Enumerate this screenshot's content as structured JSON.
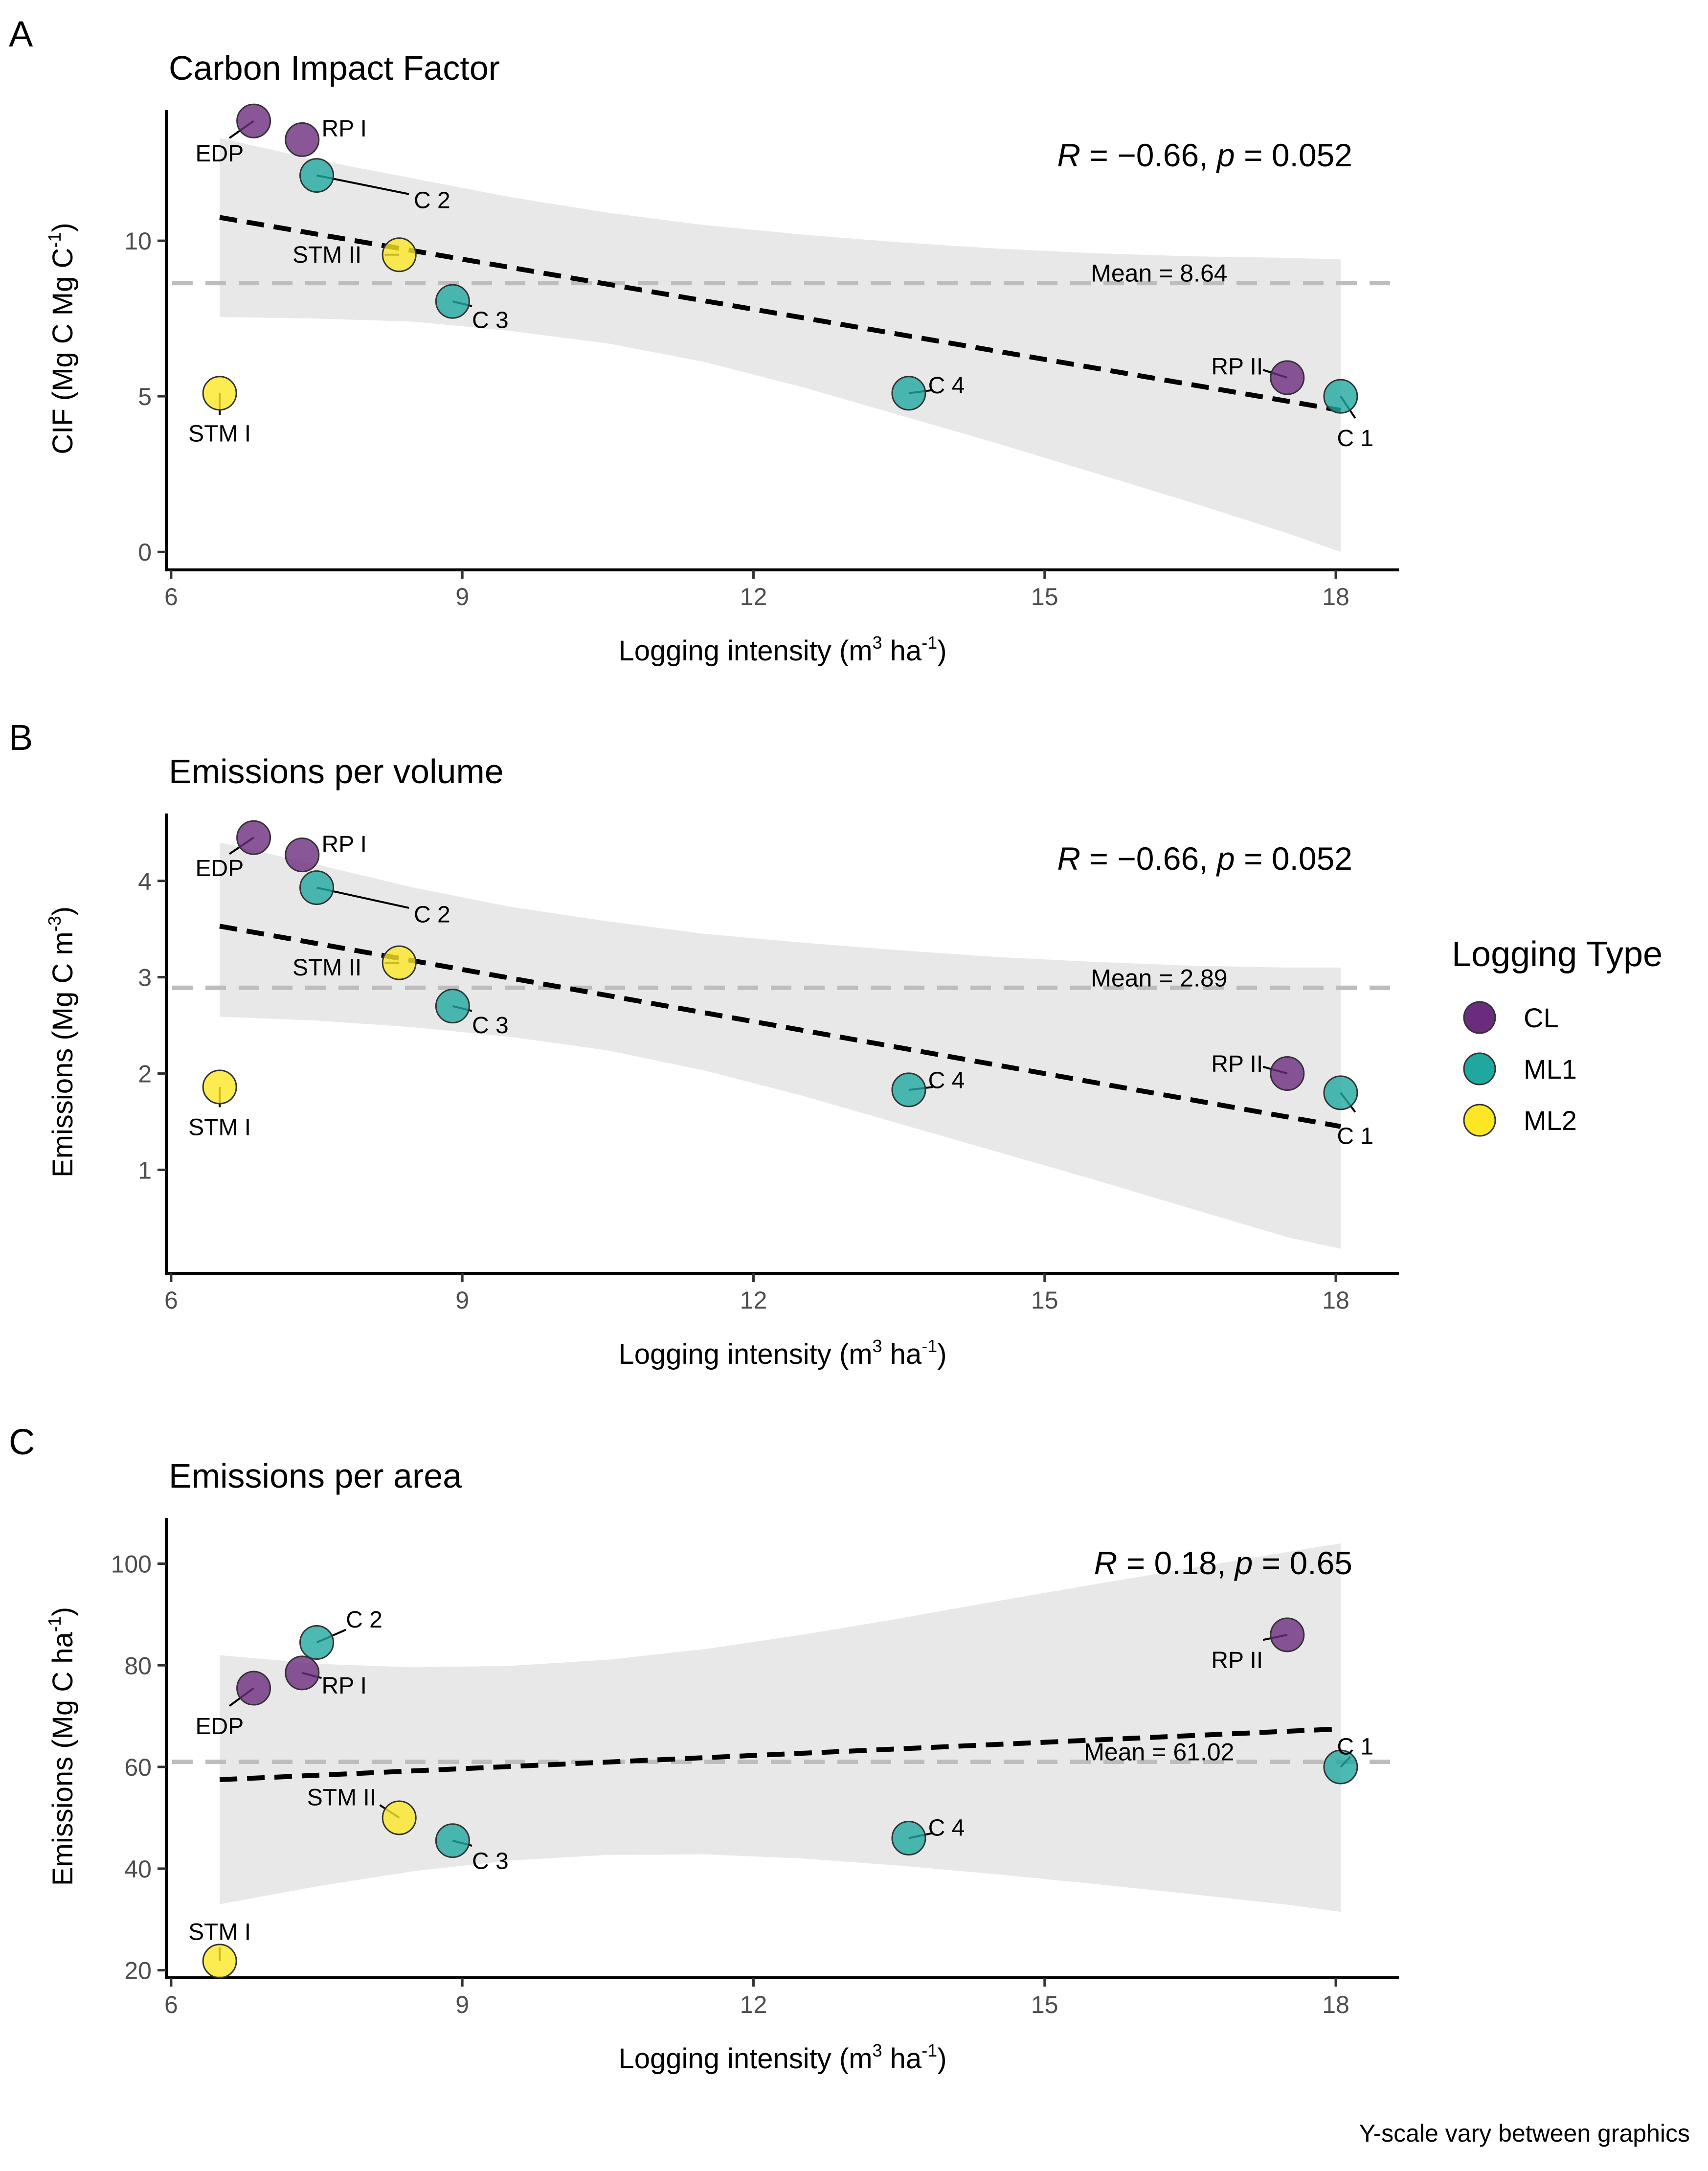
{
  "figure": {
    "footnote": "Y-scale vary between graphics",
    "legend": {
      "title": "Logging Type",
      "items": [
        {
          "key": "CL",
          "label": "CL",
          "color": "#6b2c7d"
        },
        {
          "key": "ML1",
          "label": "ML1",
          "color": "#1fa8a0"
        },
        {
          "key": "ML2",
          "label": "ML2",
          "color": "#fde725"
        }
      ]
    },
    "colors": {
      "ribbon": "#e8e8e8",
      "mean_line": "#bdbdbd",
      "trend_line": "#000000"
    }
  },
  "chart_data": [
    {
      "type": "scatter",
      "letter": "A",
      "title": "Carbon Impact Factor",
      "xlabel": "Logging intensity (m",
      "xlabel_sup1": "3",
      "xlabel_mid": " ha",
      "xlabel_sup2": "-1",
      "xlabel_end": ")",
      "ylabel": "CIF (Mg C Mg C",
      "ylabel_sup": "-1",
      "ylabel_end": ")",
      "xlim": [
        5.95,
        18.65
      ],
      "ylim": [
        -0.5,
        14.2
      ],
      "xticks": [
        6,
        9,
        12,
        15,
        18
      ],
      "yticks": [
        0,
        5,
        10
      ],
      "stat_r_label": "R",
      "stat_r_value": " = −0.66, ",
      "stat_p_label": "p",
      "stat_p_value": " = 0.052",
      "mean_value": 8.64,
      "mean_label": "Mean = 8.64",
      "trend": {
        "x": [
          6.5,
          18.05
        ],
        "y": [
          10.75,
          4.55
        ]
      },
      "ribbon": {
        "x": [
          6.5,
          7.5,
          8.5,
          9.5,
          10.5,
          11.5,
          12.5,
          13.5,
          14.5,
          15.5,
          16.5,
          17.5,
          18.05
        ],
        "upper": [
          13.3,
          12.6,
          12.0,
          11.4,
          10.9,
          10.5,
          10.2,
          9.95,
          9.75,
          9.6,
          9.5,
          9.45,
          9.4
        ],
        "lower": [
          7.55,
          7.5,
          7.4,
          7.1,
          6.7,
          6.1,
          5.3,
          4.4,
          3.5,
          2.55,
          1.6,
          0.6,
          0.0
        ]
      },
      "points": [
        {
          "label": "EDP",
          "x": 6.85,
          "y": 13.85,
          "type": "CL",
          "lx": 6.25,
          "ly": 12.8,
          "anchor": "start",
          "lineTo": [
            6.6,
            13.3
          ]
        },
        {
          "label": "RP I",
          "x": 7.35,
          "y": 13.25,
          "type": "CL",
          "lx": 7.55,
          "ly": 13.6,
          "anchor": "start",
          "lineTo": null
        },
        {
          "label": "C 2",
          "x": 7.5,
          "y": 12.1,
          "type": "ML1",
          "lx": 8.5,
          "ly": 11.3,
          "anchor": "start",
          "lineTo": [
            8.45,
            11.5
          ]
        },
        {
          "label": "STM II",
          "x": 8.35,
          "y": 9.55,
          "type": "ML2",
          "lx": 7.25,
          "ly": 9.55,
          "anchor": "start",
          "lineTo": [
            8.2,
            9.55
          ]
        },
        {
          "label": "C 3",
          "x": 8.9,
          "y": 8.05,
          "type": "ML1",
          "lx": 9.1,
          "ly": 7.45,
          "anchor": "start",
          "lineTo": [
            9.1,
            7.9
          ]
        },
        {
          "label": "STM I",
          "x": 6.5,
          "y": 5.1,
          "type": "ML2",
          "lx": 6.5,
          "ly": 3.8,
          "anchor": "middle",
          "lineTo": [
            6.5,
            4.4
          ]
        },
        {
          "label": "C 4",
          "x": 13.6,
          "y": 5.1,
          "type": "ML1",
          "lx": 13.8,
          "ly": 5.35,
          "anchor": "start",
          "lineTo": [
            13.85,
            5.2
          ]
        },
        {
          "label": "RP II",
          "x": 17.5,
          "y": 5.6,
          "type": "CL",
          "lx": 17.25,
          "ly": 5.95,
          "anchor": "end",
          "lineTo": [
            17.25,
            5.85
          ]
        },
        {
          "label": "C 1",
          "x": 18.05,
          "y": 5.0,
          "type": "ML1",
          "lx": 18.2,
          "ly": 3.65,
          "anchor": "middle",
          "lineTo": [
            18.2,
            4.3
          ]
        }
      ]
    },
    {
      "type": "scatter",
      "letter": "B",
      "title": "Emissions per volume",
      "xlabel": "Logging intensity (m",
      "xlabel_sup1": "3",
      "xlabel_mid": " ha",
      "xlabel_sup2": "-1",
      "xlabel_end": ")",
      "ylabel": "Emissions (Mg C m",
      "ylabel_sup": "-3",
      "ylabel_end": ")",
      "xlim": [
        5.95,
        18.65
      ],
      "ylim": [
        -0.05,
        4.7
      ],
      "xticks": [
        6,
        9,
        12,
        15,
        18
      ],
      "yticks": [
        1,
        2,
        3,
        4
      ],
      "stat_r_label": "R",
      "stat_r_value": " = −0.66, ",
      "stat_p_label": "p",
      "stat_p_value": " = 0.052",
      "mean_value": 2.89,
      "mean_label": "Mean = 2.89",
      "trend": {
        "x": [
          6.5,
          18.05
        ],
        "y": [
          3.53,
          1.45
        ]
      },
      "ribbon": {
        "x": [
          6.5,
          7.5,
          8.5,
          9.5,
          10.5,
          11.5,
          12.5,
          13.5,
          14.5,
          15.5,
          16.5,
          17.5,
          18.05
        ],
        "upper": [
          4.4,
          4.17,
          3.93,
          3.73,
          3.58,
          3.45,
          3.36,
          3.28,
          3.21,
          3.16,
          3.12,
          3.1,
          3.1
        ],
        "lower": [
          2.59,
          2.55,
          2.48,
          2.38,
          2.24,
          2.03,
          1.77,
          1.48,
          1.19,
          0.9,
          0.6,
          0.3,
          0.18
        ]
      },
      "points": [
        {
          "label": "EDP",
          "x": 6.85,
          "y": 4.45,
          "type": "CL",
          "lx": 6.25,
          "ly": 4.13,
          "anchor": "start",
          "lineTo": [
            6.6,
            4.28
          ]
        },
        {
          "label": "RP I",
          "x": 7.35,
          "y": 4.27,
          "type": "CL",
          "lx": 7.55,
          "ly": 4.38,
          "anchor": "start",
          "lineTo": null
        },
        {
          "label": "C 2",
          "x": 7.5,
          "y": 3.93,
          "type": "ML1",
          "lx": 8.5,
          "ly": 3.65,
          "anchor": "start",
          "lineTo": [
            8.45,
            3.72
          ]
        },
        {
          "label": "STM II",
          "x": 8.35,
          "y": 3.15,
          "type": "ML2",
          "lx": 7.25,
          "ly": 3.1,
          "anchor": "start",
          "lineTo": [
            8.2,
            3.15
          ]
        },
        {
          "label": "C 3",
          "x": 8.9,
          "y": 2.7,
          "type": "ML1",
          "lx": 9.1,
          "ly": 2.5,
          "anchor": "start",
          "lineTo": [
            9.1,
            2.65
          ]
        },
        {
          "label": "STM I",
          "x": 6.5,
          "y": 1.86,
          "type": "ML2",
          "lx": 6.5,
          "ly": 1.44,
          "anchor": "middle",
          "lineTo": [
            6.5,
            1.65
          ]
        },
        {
          "label": "C 4",
          "x": 13.6,
          "y": 1.83,
          "type": "ML1",
          "lx": 13.8,
          "ly": 1.93,
          "anchor": "start",
          "lineTo": [
            13.85,
            1.86
          ]
        },
        {
          "label": "RP II",
          "x": 17.5,
          "y": 2.0,
          "type": "CL",
          "lx": 17.25,
          "ly": 2.1,
          "anchor": "end",
          "lineTo": [
            17.25,
            2.07
          ]
        },
        {
          "label": "C 1",
          "x": 18.05,
          "y": 1.8,
          "type": "ML1",
          "lx": 18.2,
          "ly": 1.35,
          "anchor": "middle",
          "lineTo": [
            18.2,
            1.6
          ]
        }
      ]
    },
    {
      "type": "scatter",
      "letter": "C",
      "title": "Emissions per area",
      "xlabel": "Logging intensity (m",
      "xlabel_sup1": "3",
      "xlabel_mid": " ha",
      "xlabel_sup2": "-1",
      "xlabel_end": ")",
      "ylabel": "Emissions (Mg C ha",
      "ylabel_sup": "-1",
      "ylabel_end": ")",
      "xlim": [
        5.95,
        18.65
      ],
      "ylim": [
        19,
        109
      ],
      "xticks": [
        6,
        9,
        12,
        15,
        18
      ],
      "yticks": [
        20,
        40,
        60,
        80,
        100
      ],
      "stat_r_label": "R",
      "stat_r_value": " = 0.18, ",
      "stat_p_label": "p",
      "stat_p_value": " = 0.65",
      "mean_value": 61.02,
      "mean_label": "Mean = 61.02",
      "trend": {
        "x": [
          6.5,
          18.05
        ],
        "y": [
          57.5,
          67.5
        ]
      },
      "ribbon": {
        "x": [
          6.5,
          7.5,
          8.5,
          9.5,
          10.5,
          11.5,
          12.5,
          13.5,
          14.5,
          15.5,
          16.5,
          17.5,
          18.05
        ],
        "upper": [
          82.0,
          80.3,
          79.6,
          79.9,
          81.1,
          83.2,
          86.0,
          89.2,
          92.6,
          95.9,
          99.1,
          102.3,
          104.0
        ],
        "lower": [
          33.0,
          36.5,
          39.5,
          41.6,
          42.7,
          42.8,
          42.0,
          40.6,
          38.9,
          37.0,
          35.0,
          32.9,
          31.5
        ]
      },
      "points": [
        {
          "label": "EDP",
          "x": 6.85,
          "y": 75.5,
          "type": "CL",
          "lx": 6.25,
          "ly": 68.0,
          "anchor": "start",
          "lineTo": [
            6.6,
            72.0
          ]
        },
        {
          "label": "RP I",
          "x": 7.35,
          "y": 78.5,
          "type": "CL",
          "lx": 7.55,
          "ly": 76.0,
          "anchor": "start",
          "lineTo": [
            7.55,
            77.5
          ]
        },
        {
          "label": "C 2",
          "x": 7.5,
          "y": 84.5,
          "type": "ML1",
          "lx": 7.8,
          "ly": 89.0,
          "anchor": "start",
          "lineTo": [
            7.8,
            87.0
          ]
        },
        {
          "label": "STM II",
          "x": 8.35,
          "y": 50.0,
          "type": "ML2",
          "lx": 7.4,
          "ly": 54.0,
          "anchor": "start",
          "lineTo": [
            8.15,
            52.5
          ]
        },
        {
          "label": "C 3",
          "x": 8.9,
          "y": 45.5,
          "type": "ML1",
          "lx": 9.1,
          "ly": 41.5,
          "anchor": "start",
          "lineTo": [
            9.1,
            44.5
          ]
        },
        {
          "label": "STM I",
          "x": 6.5,
          "y": 21.8,
          "type": "ML2",
          "lx": 6.5,
          "ly": 27.5,
          "anchor": "middle",
          "lineTo": [
            6.5,
            24.5
          ]
        },
        {
          "label": "C 4",
          "x": 13.6,
          "y": 46.0,
          "type": "ML1",
          "lx": 13.8,
          "ly": 48.0,
          "anchor": "start",
          "lineTo": [
            13.85,
            47.0
          ]
        },
        {
          "label": "RP II",
          "x": 17.5,
          "y": 86.0,
          "type": "CL",
          "lx": 17.25,
          "ly": 81.0,
          "anchor": "end",
          "lineTo": [
            17.25,
            85.0
          ]
        },
        {
          "label": "C 1",
          "x": 18.05,
          "y": 60.0,
          "type": "ML1",
          "lx": 18.2,
          "ly": 64.0,
          "anchor": "middle",
          "lineTo": [
            18.15,
            62.0
          ]
        }
      ]
    }
  ]
}
